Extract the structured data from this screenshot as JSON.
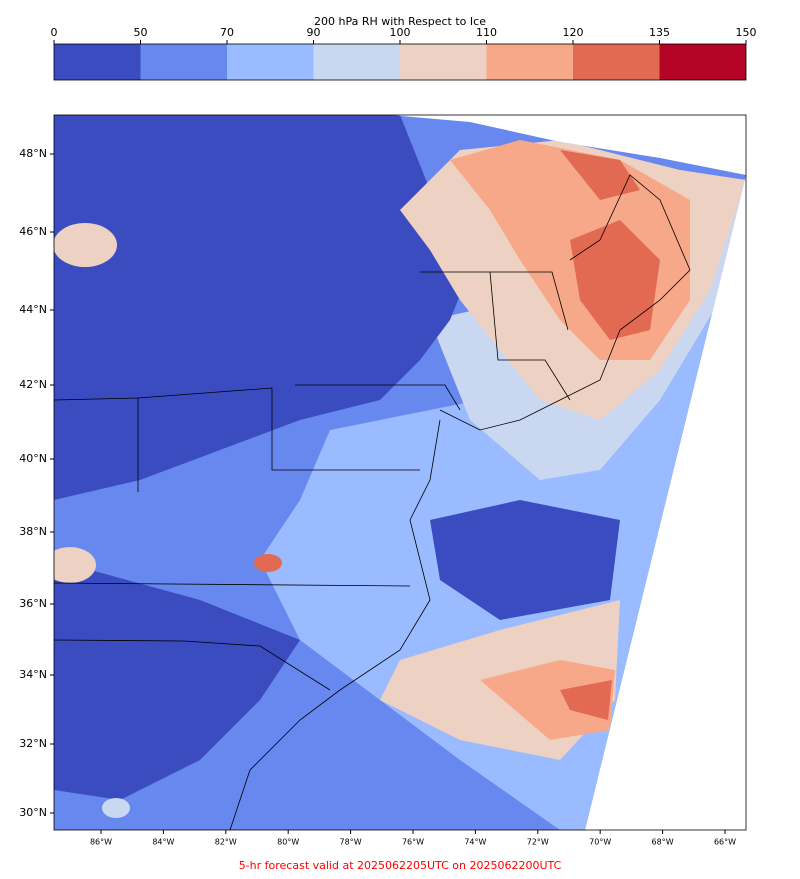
{
  "title": "200 hPa RH with Respect to Ice",
  "colorbar": {
    "levels": [
      0,
      50,
      70,
      90,
      100,
      110,
      120,
      135,
      150
    ],
    "colors": [
      "#3b4cc0",
      "#6788ee",
      "#9abbff",
      "#c9d7f0",
      "#edd1c2",
      "#f7a889",
      "#e26952",
      "#b40426"
    ]
  },
  "lat_labels": [
    "48°N",
    "46°N",
    "44°N",
    "42°N",
    "40°N",
    "38°N",
    "36°N",
    "34°N",
    "32°N",
    "30°N"
  ],
  "lon_labels": [
    "86°W",
    "84°W",
    "82°W",
    "80°W",
    "78°W",
    "76°W",
    "74°W",
    "72°W",
    "70°W",
    "68°W",
    "66°W"
  ],
  "footer": "5-hr forecast valid at 2025062205UTC on 2025062200UTC"
}
